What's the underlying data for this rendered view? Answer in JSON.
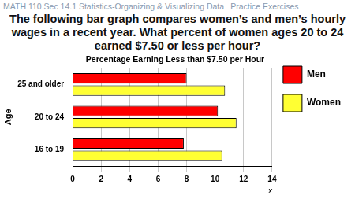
{
  "slide": {
    "header": "MATH 110 Sec 14.1 Statistics-Organizing & Visualizing Data",
    "header_right": "Practice Exercises",
    "question": "The following bar graph compares women’s and men’s hourly wages in a recent year. What percent of women ages 20 to 24 earned $7.50 or less per hour?"
  },
  "chart_data": {
    "type": "bar",
    "orientation": "horizontal",
    "title": "Percentage Earning Less than $7.50 per Hour",
    "y_label": "Age",
    "x_label": "x",
    "categories": [
      "25 and older",
      "20 to 24",
      "16 to 19"
    ],
    "series": [
      {
        "name": "Men",
        "color": "#ff0000",
        "values": [
          8,
          10.2,
          7.8
        ]
      },
      {
        "name": "Women",
        "color": "#ffff33",
        "values": [
          10.7,
          11.5,
          10.5
        ]
      }
    ],
    "xlim": [
      0,
      14
    ],
    "xticks": [
      0,
      2,
      4,
      6,
      8,
      10,
      12,
      14
    ],
    "grid": true,
    "legend": "right"
  }
}
